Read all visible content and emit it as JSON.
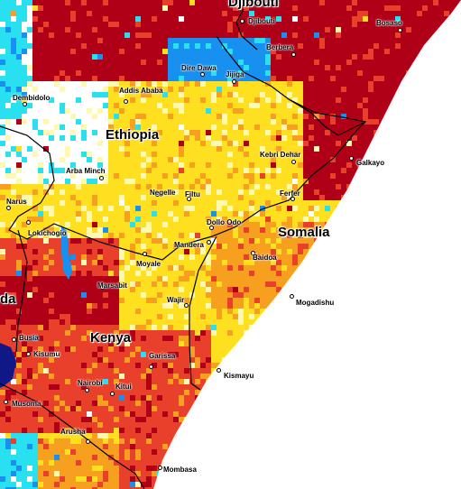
{
  "colors": {
    "ocean": "#ffffff",
    "dark_red": "#b00018",
    "red": "#e8402a",
    "orange": "#f7a020",
    "yellow": "#ffe020",
    "light_yellow": "#fff8b0",
    "white": "#ffffff",
    "cyan": "#28e0f0",
    "blue": "#1890f0",
    "navy": "#101888",
    "border": "#000000"
  },
  "countries": {
    "djibouti": "Djibouti",
    "ethiopia": "Ethiopia",
    "somalia": "Somalia",
    "kenya": "Kenya",
    "uganda": "da"
  },
  "cities": {
    "djibouti": "Djibouti",
    "bosaso": "Bosaso",
    "berbera": "Berbera",
    "dire_dawa": "Dire Dawa",
    "jijiga": "Jijiga",
    "dembidolo": "Dembidolo",
    "addis_ababa": "Addis Ababa",
    "kebri_dehar": "Kebri Dehar",
    "galkayo": "Galkayo",
    "arba_minch": "Arba Minch",
    "negelle": "Negelle",
    "filtu": "Filtu",
    "ferfer": "Ferfer",
    "narus": "Narus",
    "lokichogio": "Lokichogio",
    "dollo_odo": "Dollo Odo",
    "mandera": "Mandera",
    "moyale": "Moyale",
    "baidoa": "Baidoa",
    "marsabit": "Marsabit",
    "wajir": "Wajir",
    "mogadishu": "Mogadishu",
    "busia": "Busia",
    "kisumu": "Kisumu",
    "garissa": "Garissa",
    "kismayu": "Kismayu",
    "nairobi": "Nairobi",
    "kitui": "Kitui",
    "musoma": "Musoma",
    "arusha": "Arusha",
    "mombasa": "Mombasa"
  }
}
